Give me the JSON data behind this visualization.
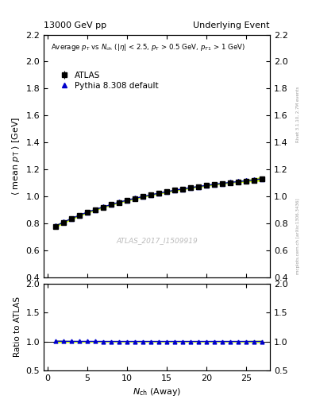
{
  "title_left": "13000 GeV pp",
  "title_right": "Underlying Event",
  "watermark": "ATLAS_2017_I1509919",
  "right_label": "mcplots.cern.ch [arXiv:1306.3436]",
  "right_label2": "Rivet 3.1.10, 2.7M events",
  "ylabel_main": "\\langle mean p_T \\rangle [GeV]",
  "ylabel_ratio": "Ratio to ATLAS",
  "ylim_main": [
    0.4,
    2.2
  ],
  "ylim_ratio": [
    0.5,
    2.0
  ],
  "yticks_main": [
    0.4,
    0.6,
    0.8,
    1.0,
    1.2,
    1.4,
    1.6,
    1.8,
    2.0,
    2.2
  ],
  "yticks_ratio": [
    0.5,
    1.0,
    1.5,
    2.0
  ],
  "xlim": [
    -0.5,
    28
  ],
  "xticks": [
    0,
    5,
    10,
    15,
    20,
    25
  ],
  "atlas_x": [
    1,
    2,
    3,
    4,
    5,
    6,
    7,
    8,
    9,
    10,
    11,
    12,
    13,
    14,
    15,
    16,
    17,
    18,
    19,
    20,
    21,
    22,
    23,
    24,
    25,
    26,
    27
  ],
  "atlas_y": [
    0.775,
    0.805,
    0.832,
    0.858,
    0.88,
    0.9,
    0.92,
    0.938,
    0.955,
    0.97,
    0.984,
    0.997,
    1.01,
    1.022,
    1.033,
    1.044,
    1.054,
    1.063,
    1.072,
    1.08,
    1.088,
    1.095,
    1.102,
    1.108,
    1.114,
    1.12,
    1.13
  ],
  "atlas_err": [
    0.01,
    0.008,
    0.007,
    0.006,
    0.006,
    0.005,
    0.005,
    0.005,
    0.005,
    0.005,
    0.005,
    0.005,
    0.005,
    0.005,
    0.005,
    0.005,
    0.005,
    0.005,
    0.005,
    0.005,
    0.005,
    0.005,
    0.006,
    0.006,
    0.007,
    0.008,
    0.01
  ],
  "pythia_x": [
    1,
    2,
    3,
    4,
    5,
    6,
    7,
    8,
    9,
    10,
    11,
    12,
    13,
    14,
    15,
    16,
    17,
    18,
    19,
    20,
    21,
    22,
    23,
    24,
    25,
    26,
    27
  ],
  "pythia_y": [
    0.78,
    0.808,
    0.835,
    0.86,
    0.882,
    0.902,
    0.921,
    0.939,
    0.956,
    0.971,
    0.985,
    0.998,
    1.011,
    1.023,
    1.034,
    1.045,
    1.055,
    1.064,
    1.073,
    1.081,
    1.089,
    1.096,
    1.103,
    1.109,
    1.115,
    1.121,
    1.131
  ],
  "pythia_band_lo": [
    0.773,
    0.803,
    0.83,
    0.856,
    0.878,
    0.898,
    0.918,
    0.936,
    0.953,
    0.968,
    0.982,
    0.995,
    1.008,
    1.02,
    1.031,
    1.042,
    1.052,
    1.061,
    1.07,
    1.078,
    1.086,
    1.093,
    1.1,
    1.106,
    1.109,
    1.113,
    1.118
  ],
  "pythia_band_hi": [
    0.787,
    0.813,
    0.84,
    0.864,
    0.886,
    0.906,
    0.924,
    0.942,
    0.959,
    0.974,
    0.988,
    1.001,
    1.014,
    1.026,
    1.037,
    1.048,
    1.058,
    1.067,
    1.076,
    1.084,
    1.092,
    1.099,
    1.106,
    1.112,
    1.121,
    1.129,
    1.144
  ],
  "ratio_pythia_y": [
    1.006,
    1.004,
    1.003,
    1.002,
    1.002,
    1.002,
    1.001,
    1.001,
    1.001,
    1.001,
    1.001,
    1.001,
    1.001,
    1.001,
    1.001,
    1.001,
    1.001,
    1.001,
    1.001,
    1.001,
    1.001,
    1.001,
    1.001,
    1.001,
    1.001,
    1.001,
    1.001
  ],
  "ratio_band_lo": [
    0.985,
    0.99,
    0.993,
    0.994,
    0.995,
    0.996,
    0.996,
    0.997,
    0.997,
    0.997,
    0.997,
    0.997,
    0.998,
    0.998,
    0.998,
    0.998,
    0.998,
    0.998,
    0.998,
    0.998,
    0.998,
    0.997,
    0.997,
    0.997,
    0.994,
    0.992,
    0.988
  ],
  "ratio_band_hi": [
    1.015,
    1.01,
    1.007,
    1.006,
    1.005,
    1.004,
    1.004,
    1.003,
    1.003,
    1.003,
    1.003,
    1.003,
    1.002,
    1.002,
    1.002,
    1.002,
    1.002,
    1.002,
    1.002,
    1.002,
    1.002,
    1.003,
    1.003,
    1.003,
    1.008,
    1.01,
    1.014
  ],
  "atlas_color": "#000000",
  "pythia_color": "#0000cc",
  "band_color": "#ccff00",
  "bg_color": "#ffffff",
  "legend_atlas": "ATLAS",
  "legend_pythia": "Pythia 8.308 default"
}
